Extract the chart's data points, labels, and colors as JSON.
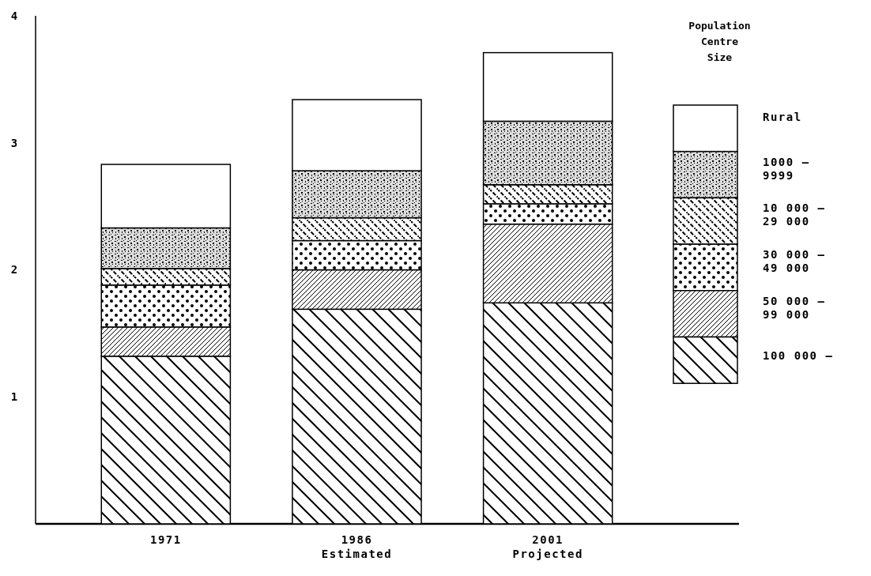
{
  "chart_data": {
    "type": "bar",
    "stacked": true,
    "categories": [
      "1971",
      "1986 Estimated",
      "2001 Projected"
    ],
    "series": [
      {
        "name": "100 000 –",
        "color": "#000000",
        "values": [
          1.32,
          1.69,
          1.74
        ]
      },
      {
        "name": "50 000 – 99 000",
        "color": "#000000",
        "values": [
          0.23,
          0.31,
          0.62
        ]
      },
      {
        "name": "30 000 – 49 000",
        "color": "#000000",
        "values": [
          0.33,
          0.23,
          0.16
        ]
      },
      {
        "name": "10 000 – 29 000",
        "color": "#000000",
        "values": [
          0.13,
          0.18,
          0.15
        ]
      },
      {
        "name": "1000 – 9999",
        "color": "#000000",
        "values": [
          0.32,
          0.37,
          0.5
        ]
      },
      {
        "name": "Rural",
        "color": "#ffffff",
        "values": [
          0.5,
          0.56,
          0.54
        ]
      }
    ],
    "ylim": [
      0,
      4
    ],
    "yticks": [
      1,
      2,
      3,
      4
    ],
    "legend": "right",
    "legend_title": "Population Centre Size"
  }
}
